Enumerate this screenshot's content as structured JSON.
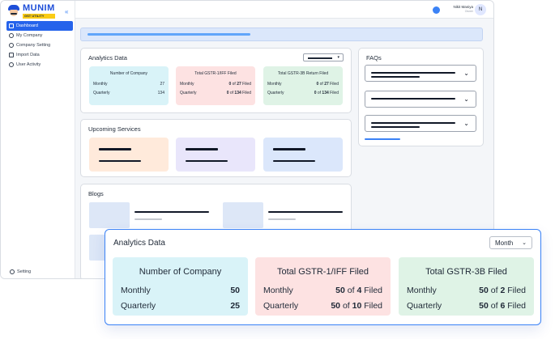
{
  "brand": {
    "name": "MUNIM",
    "tagline": "GST UTILITY"
  },
  "sidebar": {
    "items": [
      {
        "label": "Dashboard",
        "icon": "home-icon",
        "active": true
      },
      {
        "label": "My Company",
        "icon": "eye-icon",
        "active": false
      },
      {
        "label": "Company Setting",
        "icon": "gear-icon",
        "active": false
      },
      {
        "label": "Import Data",
        "icon": "database-icon",
        "active": false
      },
      {
        "label": "User Activity",
        "icon": "user-icon",
        "active": false
      }
    ],
    "setting_label": "Setting",
    "collapse_icon": "double-chevron-left-icon"
  },
  "header": {
    "user_name": "Nikit Maniya",
    "user_role": "Owner",
    "avatar_initial": "N",
    "notification_icon": "bell-icon"
  },
  "setup_progress": {
    "fraction": 0.42
  },
  "analytics": {
    "title": "Analytics Data",
    "cards": [
      {
        "title": "Number of Company",
        "monthly_label": "Monthly",
        "monthly_value": "27",
        "quarterly_label": "Quarterly",
        "quarterly_value": "134"
      },
      {
        "title": "Total GSTR-1/IFF Filed",
        "monthly_label": "Monthly",
        "monthly_filed": "0",
        "monthly_of": "of",
        "monthly_total": "27",
        "monthly_suffix": "Filed",
        "quarterly_label": "Quarterly",
        "quarterly_filed": "0",
        "quarterly_of": "of",
        "quarterly_total": "134",
        "quarterly_suffix": "Filed"
      },
      {
        "title": "Total GSTR-3B Return Filed",
        "monthly_label": "Monthly",
        "monthly_filed": "0",
        "monthly_of": "of",
        "monthly_total": "27",
        "monthly_suffix": "Filed",
        "quarterly_label": "Quarterly",
        "quarterly_filed": "0",
        "quarterly_of": "of",
        "quarterly_total": "134",
        "quarterly_suffix": "Filed"
      }
    ]
  },
  "upcoming": {
    "title": "Upcoming Services"
  },
  "blogs": {
    "title": "Blogs"
  },
  "faqs": {
    "title": "FAQs"
  },
  "zoom_panel": {
    "title": "Analytics Data",
    "period_select": "Month",
    "cards": [
      {
        "title": "Number of Company",
        "monthly_label": "Monthly",
        "monthly_value": "50",
        "quarterly_label": "Quarterly",
        "quarterly_value": "25"
      },
      {
        "title": "Total GSTR-1/IFF Filed",
        "monthly_label": "Monthly",
        "monthly_filed": "50",
        "monthly_of": "of",
        "monthly_total": "4",
        "monthly_suffix": "Filed",
        "quarterly_label": "Quarterly",
        "quarterly_filed": "50",
        "quarterly_of": "of",
        "quarterly_total": "10",
        "quarterly_suffix": "Filed"
      },
      {
        "title": "Total GSTR-3B Filed",
        "monthly_label": "Monthly",
        "monthly_filed": "50",
        "monthly_of": "of",
        "monthly_total": "2",
        "monthly_suffix": "Filed",
        "quarterly_label": "Quarterly",
        "quarterly_filed": "50",
        "quarterly_of": "of",
        "quarterly_total": "6",
        "quarterly_suffix": "Filed"
      }
    ]
  },
  "colors": {
    "accent": "#2563eb",
    "company_card": "#d9f3f8",
    "gstr1_card": "#fde2e2",
    "gstr3b_card": "#dff3e6"
  }
}
